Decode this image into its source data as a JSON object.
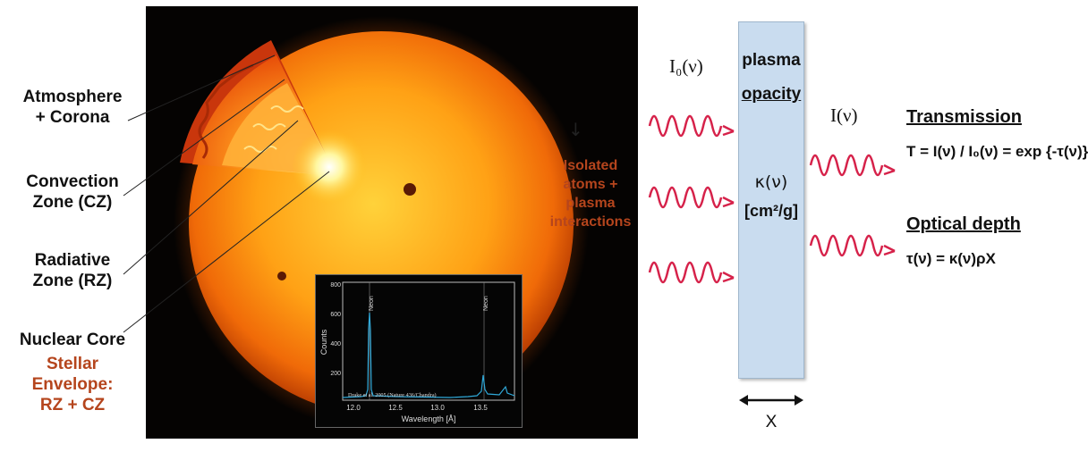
{
  "left_labels": {
    "atmosphere": [
      "Atmosphere",
      "+ Corona"
    ],
    "convection": [
      "Convection",
      "Zone (CZ)"
    ],
    "radiative": [
      "Radiative",
      "Zone (RZ)"
    ],
    "core": "Nuclear Core",
    "envelope": [
      "Stellar",
      "Envelope:",
      "RZ + CZ"
    ]
  },
  "inset_spectrum": {
    "ylabel": "Counts",
    "xlabel": "Wavelength [Å]",
    "yticks": [
      "800",
      "600",
      "400",
      "200"
    ],
    "xticks": [
      "12.0",
      "12.5",
      "13.0",
      "13.5"
    ],
    "peak_labels": [
      "Neon",
      "Neon"
    ],
    "credit": "Drake et al. 2005 (Nature 436/Chandra)"
  },
  "middle": {
    "arrow_glyph": "↓",
    "interactions": [
      "Isolated",
      "atoms +",
      "plasma",
      "interactions"
    ]
  },
  "slab": {
    "title_line1": "plasma",
    "title_line2": "opacity",
    "kappa": "κ(ν)",
    "unit": "[cm²/g]",
    "thickness": "X"
  },
  "incident": "I₀(ν)",
  "transmitted": "I(ν)",
  "transmission": {
    "heading": "Transmission",
    "formula": "T = I(ν) / I₀(ν) = exp {-τ(ν)}"
  },
  "optical_depth": {
    "heading": "Optical depth",
    "formula": "τ(ν) = κ(ν)ρX"
  },
  "colors": {
    "wave": "#d6224a",
    "envelope_text": "#b5451d",
    "slab": "#c9dcef",
    "spectrum": "#2fa8d8"
  }
}
